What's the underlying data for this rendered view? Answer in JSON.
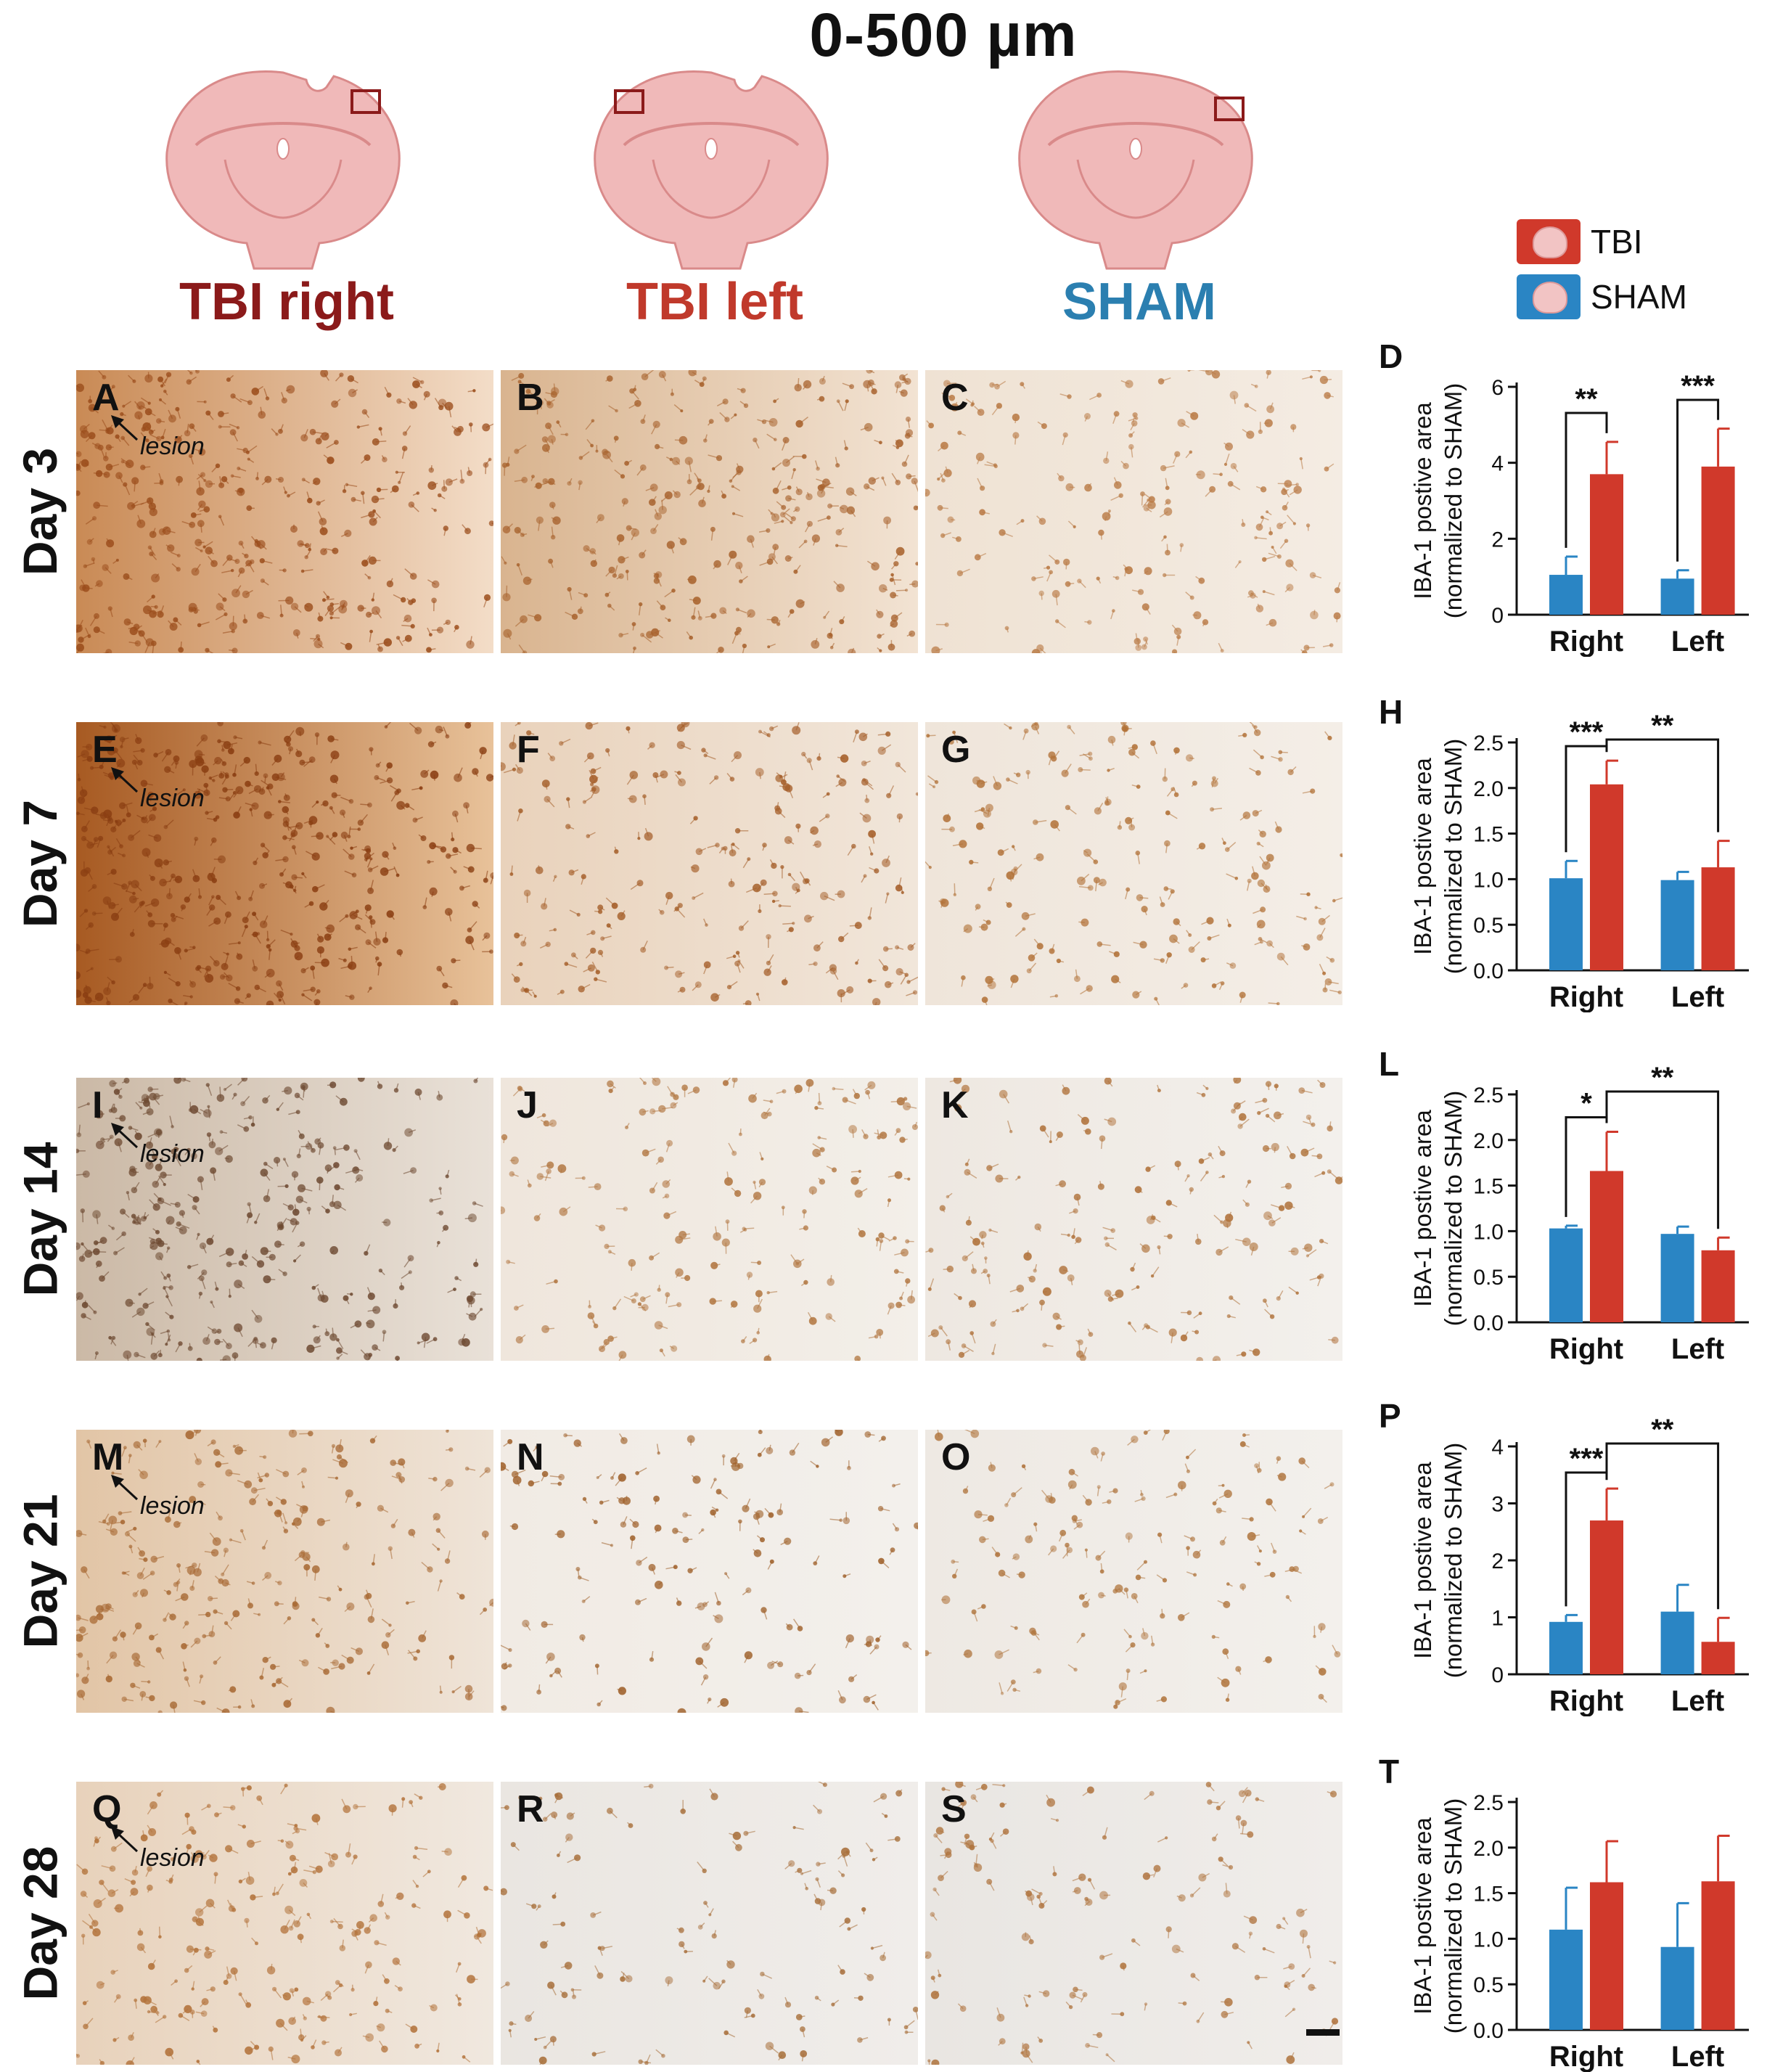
{
  "figure": {
    "title": "0-500 µm",
    "columns": [
      {
        "label": "TBI right",
        "color": "#8b1a1a"
      },
      {
        "label": "TBI left",
        "color": "#c0392b"
      },
      {
        "label": "SHAM",
        "color": "#2b7fb0"
      }
    ],
    "rows": [
      {
        "label": "Day 3",
        "panels": [
          "A",
          "B",
          "C"
        ],
        "lesion": "lesion"
      },
      {
        "label": "Day 7",
        "panels": [
          "E",
          "F",
          "G"
        ],
        "lesion": "lesion"
      },
      {
        "label": "Day 14",
        "panels": [
          "I",
          "J",
          "K"
        ],
        "lesion": "lesion"
      },
      {
        "label": "Day 21",
        "panels": [
          "M",
          "N",
          "O"
        ],
        "lesion": "lesion"
      },
      {
        "label": "Day 28",
        "panels": [
          "Q",
          "R",
          "S"
        ],
        "lesion": "lesion"
      }
    ]
  },
  "legend": {
    "items": [
      {
        "label": "TBI",
        "color": "#d0392b"
      },
      {
        "label": "SHAM",
        "color": "#2a85c4"
      }
    ]
  },
  "colors": {
    "tbi": "#d0392b",
    "sham": "#2a85c4",
    "tbi_col_text": "#8b1a1a"
  },
  "chart_data": [
    {
      "panel": "D",
      "type": "bar",
      "categories": [
        "Right",
        "Left"
      ],
      "series": [
        {
          "name": "SHAM",
          "values": [
            1.05,
            0.95
          ],
          "errors": [
            0.48,
            0.22
          ]
        },
        {
          "name": "TBI",
          "values": [
            3.7,
            3.9
          ],
          "errors": [
            0.85,
            1.0
          ]
        }
      ],
      "ylabel": "IBA-1 postive area\n(normalized to SHAM)",
      "ylim": [
        0,
        6
      ],
      "yticks": [
        0,
        2,
        4,
        6
      ],
      "yticklabels": [
        "0",
        "2",
        "4",
        "6"
      ],
      "annotations": [
        {
          "text": "**",
          "from": "Right-SHAM",
          "to": "Right-TBI"
        },
        {
          "text": "***",
          "from": "Left-SHAM",
          "to": "Left-TBI"
        }
      ]
    },
    {
      "panel": "H",
      "type": "bar",
      "categories": [
        "Right",
        "Left"
      ],
      "series": [
        {
          "name": "SHAM",
          "values": [
            1.01,
            0.99
          ],
          "errors": [
            0.19,
            0.09
          ]
        },
        {
          "name": "TBI",
          "values": [
            2.04,
            1.13
          ],
          "errors": [
            0.26,
            0.29
          ]
        }
      ],
      "ylabel": "IBA-1 postive area\n(normalized to SHAM)",
      "ylim": [
        0,
        2.5
      ],
      "yticks": [
        0,
        0.5,
        1.0,
        1.5,
        2.0,
        2.5
      ],
      "yticklabels": [
        "0.0",
        "0.5",
        "1.0",
        "1.5",
        "2.0",
        "2.5"
      ],
      "annotations": [
        {
          "text": "***",
          "from": "Right-SHAM",
          "to": "Right-TBI"
        },
        {
          "text": "**",
          "from": "Right-TBI",
          "to": "Left-TBI"
        }
      ]
    },
    {
      "panel": "L",
      "type": "bar",
      "categories": [
        "Right",
        "Left"
      ],
      "series": [
        {
          "name": "SHAM",
          "values": [
            1.03,
            0.97
          ],
          "errors": [
            0.03,
            0.08
          ]
        },
        {
          "name": "TBI",
          "values": [
            1.66,
            0.79
          ],
          "errors": [
            0.43,
            0.14
          ]
        }
      ],
      "ylabel": "IBA-1 postive area\n(normalized to SHAM)",
      "ylim": [
        0,
        2.5
      ],
      "yticks": [
        0,
        0.5,
        1.0,
        1.5,
        2.0,
        2.5
      ],
      "yticklabels": [
        "0.0",
        "0.5",
        "1.0",
        "1.5",
        "2.0",
        "2.5"
      ],
      "annotations": [
        {
          "text": "*",
          "from": "Right-SHAM",
          "to": "Right-TBI"
        },
        {
          "text": "**",
          "from": "Right-TBI",
          "to": "Left-TBI"
        }
      ]
    },
    {
      "panel": "P",
      "type": "bar",
      "categories": [
        "Right",
        "Left"
      ],
      "series": [
        {
          "name": "SHAM",
          "values": [
            0.92,
            1.1
          ],
          "errors": [
            0.12,
            0.47
          ]
        },
        {
          "name": "TBI",
          "values": [
            2.7,
            0.57
          ],
          "errors": [
            0.56,
            0.42
          ]
        }
      ],
      "ylabel": "IBA-1 postive area\n(normalized to SHAM)",
      "ylim": [
        0,
        4
      ],
      "yticks": [
        0,
        1,
        2,
        3,
        4
      ],
      "yticklabels": [
        "0",
        "1",
        "2",
        "3",
        "4"
      ],
      "annotations": [
        {
          "text": "***",
          "from": "Right-SHAM",
          "to": "Right-TBI"
        },
        {
          "text": "**",
          "from": "Right-TBI",
          "to": "Left-TBI"
        }
      ]
    },
    {
      "panel": "T",
      "type": "bar",
      "categories": [
        "Right",
        "Left"
      ],
      "series": [
        {
          "name": "SHAM",
          "values": [
            1.1,
            0.91
          ],
          "errors": [
            0.46,
            0.48
          ]
        },
        {
          "name": "TBI",
          "values": [
            1.62,
            1.63
          ],
          "errors": [
            0.45,
            0.5
          ]
        }
      ],
      "ylabel": "IBA-1 postive area\n(normalized to SHAM)",
      "ylim": [
        0,
        2.5
      ],
      "yticks": [
        0,
        0.5,
        1.0,
        1.5,
        2.0,
        2.5
      ],
      "yticklabels": [
        "0.0",
        "0.5",
        "1.0",
        "1.5",
        "2.0",
        "2.5"
      ],
      "annotations": []
    }
  ]
}
